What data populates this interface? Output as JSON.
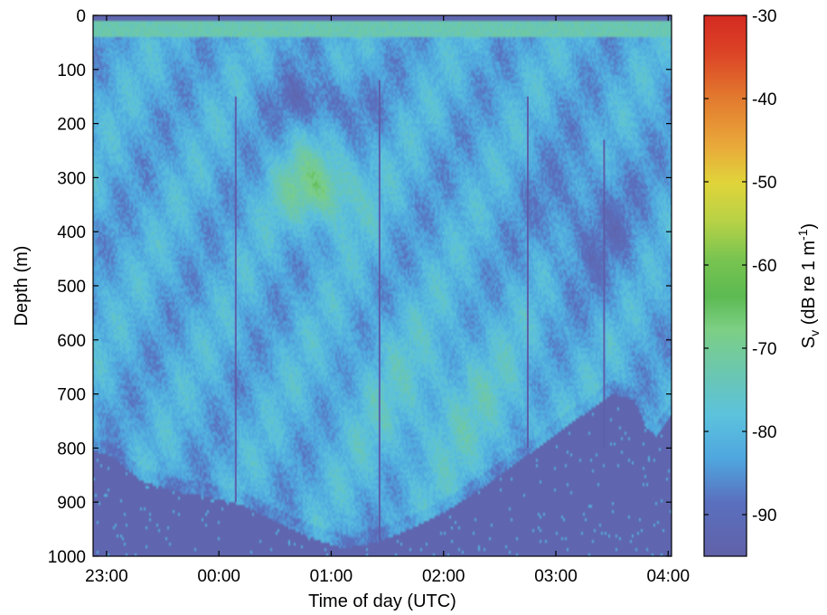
{
  "chart_data": {
    "type": "heatmap",
    "title": "",
    "xlabel": "Time of day (UTC)",
    "ylabel": "Depth (m)",
    "colorbar_label": {
      "base": "S",
      "sub": "v",
      "text": " (dB re 1 m",
      "sup": "-1",
      "close": ")"
    },
    "x_tick_labels": [
      "23:00",
      "00:00",
      "01:00",
      "02:00",
      "03:00",
      "04:00"
    ],
    "x_ticks_hours": [
      23.0,
      24.0,
      25.0,
      26.0,
      27.0,
      28.0
    ],
    "xlim_hours": [
      22.88,
      28.03
    ],
    "y_ticks": [
      0,
      100,
      200,
      300,
      400,
      500,
      600,
      700,
      800,
      900,
      1000
    ],
    "ylim": [
      0,
      1000
    ],
    "y_reversed": true,
    "colorbar_ticks": [
      -30,
      -40,
      -50,
      -60,
      -70,
      -80,
      -90
    ],
    "clim": [
      -95,
      -30
    ],
    "colormap": "jet-like (blue low, red high)",
    "background_color": "#6161a8",
    "noise_floor_dB": -93,
    "seafloor_depth": {
      "time_hours": [
        22.88,
        23.05,
        23.3,
        23.6,
        23.9,
        24.2,
        24.5,
        24.8,
        25.1,
        25.4,
        25.7,
        26.0,
        26.3,
        26.6,
        26.9,
        27.1,
        27.3,
        27.5,
        27.7,
        27.8,
        27.9,
        28.03
      ],
      "depth_m": [
        805,
        815,
        860,
        880,
        890,
        905,
        935,
        965,
        985,
        975,
        950,
        920,
        880,
        835,
        790,
        760,
        730,
        700,
        710,
        760,
        780,
        740
      ]
    },
    "scattering_layers": [
      {
        "name_hint": "surface layer",
        "depth_m": 20,
        "level_dB": -73
      },
      {
        "name_hint": "mesopelagic patch",
        "center_time_hours": 24.9,
        "center_depth_m": 320,
        "level_dB": -68
      },
      {
        "name_hint": "deep diffuse layer",
        "center_time_hours": 26.0,
        "center_depth_m": 720,
        "level_dB": -74
      }
    ],
    "vertical_artifacts_hours": [
      24.15,
      25.43,
      26.75,
      27.43
    ]
  }
}
